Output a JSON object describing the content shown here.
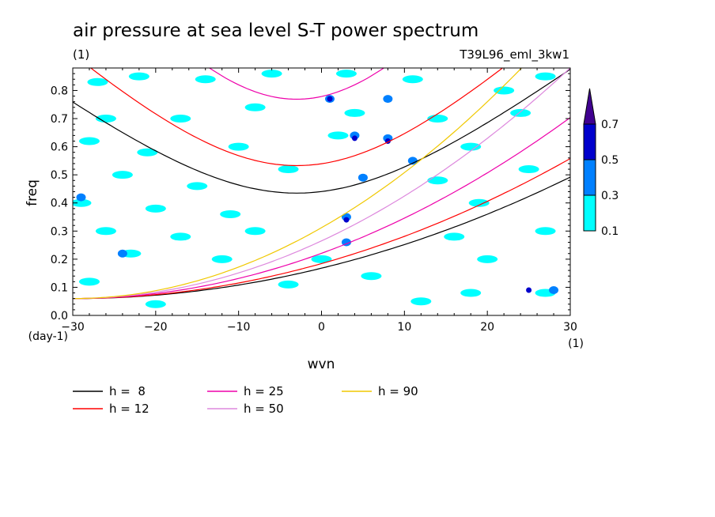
{
  "chart_data": {
    "type": "heatmap",
    "title": "air pressure at sea level S-T power spectrum",
    "subtitle_left": "(1)",
    "subtitle_right": "T39L96_eml_3kw1",
    "xlabel": "wvn",
    "ylabel": "freq",
    "x_unit_label": "(1)",
    "y_unit_label": "(day-1)",
    "xlim": [
      -30,
      30
    ],
    "ylim": [
      0.0,
      0.88
    ],
    "xticks": [
      -30,
      -20,
      -10,
      0,
      10,
      20,
      30
    ],
    "yticks": [
      0.0,
      0.1,
      0.2,
      0.3,
      0.4,
      0.5,
      0.6,
      0.7,
      0.8
    ],
    "colorbar": {
      "levels": [
        "0.1",
        "0.3",
        "0.5",
        "0.7"
      ],
      "colors": [
        "#00ffff",
        "#0080ff",
        "#0000cc",
        "#400090"
      ]
    },
    "contour_blobs": [
      {
        "x": -27,
        "y": 0.83,
        "level": 1
      },
      {
        "x": -22,
        "y": 0.85,
        "level": 1
      },
      {
        "x": -14,
        "y": 0.84,
        "level": 1
      },
      {
        "x": -6,
        "y": 0.86,
        "level": 1
      },
      {
        "x": 3,
        "y": 0.86,
        "level": 1
      },
      {
        "x": 11,
        "y": 0.84,
        "level": 1
      },
      {
        "x": 22,
        "y": 0.8,
        "level": 1
      },
      {
        "x": 27,
        "y": 0.85,
        "level": 1
      },
      {
        "x": -26,
        "y": 0.7,
        "level": 1
      },
      {
        "x": -17,
        "y": 0.7,
        "level": 1
      },
      {
        "x": -8,
        "y": 0.74,
        "level": 1
      },
      {
        "x": 4,
        "y": 0.72,
        "level": 1
      },
      {
        "x": 14,
        "y": 0.7,
        "level": 1
      },
      {
        "x": 24,
        "y": 0.72,
        "level": 1
      },
      {
        "x": -28,
        "y": 0.62,
        "level": 1
      },
      {
        "x": -21,
        "y": 0.58,
        "level": 1
      },
      {
        "x": -10,
        "y": 0.6,
        "level": 1
      },
      {
        "x": 2,
        "y": 0.64,
        "level": 1
      },
      {
        "x": 18,
        "y": 0.6,
        "level": 1
      },
      {
        "x": -24,
        "y": 0.5,
        "level": 1
      },
      {
        "x": -15,
        "y": 0.46,
        "level": 1
      },
      {
        "x": -4,
        "y": 0.52,
        "level": 1
      },
      {
        "x": 14,
        "y": 0.48,
        "level": 1
      },
      {
        "x": 25,
        "y": 0.52,
        "level": 1
      },
      {
        "x": -29,
        "y": 0.4,
        "level": 1
      },
      {
        "x": -20,
        "y": 0.38,
        "level": 1
      },
      {
        "x": -11,
        "y": 0.36,
        "level": 1
      },
      {
        "x": 19,
        "y": 0.4,
        "level": 1
      },
      {
        "x": -26,
        "y": 0.3,
        "level": 1
      },
      {
        "x": -17,
        "y": 0.28,
        "level": 1
      },
      {
        "x": -8,
        "y": 0.3,
        "level": 1
      },
      {
        "x": 16,
        "y": 0.28,
        "level": 1
      },
      {
        "x": 27,
        "y": 0.3,
        "level": 1
      },
      {
        "x": -23,
        "y": 0.22,
        "level": 1
      },
      {
        "x": -12,
        "y": 0.2,
        "level": 1
      },
      {
        "x": 0,
        "y": 0.2,
        "level": 1
      },
      {
        "x": 20,
        "y": 0.2,
        "level": 1
      },
      {
        "x": -28,
        "y": 0.12,
        "level": 1
      },
      {
        "x": -4,
        "y": 0.11,
        "level": 1
      },
      {
        "x": 6,
        "y": 0.14,
        "level": 1
      },
      {
        "x": 18,
        "y": 0.08,
        "level": 1
      },
      {
        "x": 27,
        "y": 0.08,
        "level": 1
      },
      {
        "x": -20,
        "y": 0.04,
        "level": 1
      },
      {
        "x": 12,
        "y": 0.05,
        "level": 1
      },
      {
        "x": 1,
        "y": 0.77,
        "level": 2
      },
      {
        "x": 4,
        "y": 0.64,
        "level": 2
      },
      {
        "x": 8,
        "y": 0.63,
        "level": 2
      },
      {
        "x": 5,
        "y": 0.49,
        "level": 2
      },
      {
        "x": 3,
        "y": 0.35,
        "level": 2
      },
      {
        "x": 28,
        "y": 0.09,
        "level": 2
      },
      {
        "x": -29,
        "y": 0.42,
        "level": 2
      },
      {
        "x": -24,
        "y": 0.22,
        "level": 2
      },
      {
        "x": 11,
        "y": 0.55,
        "level": 2
      },
      {
        "x": 8,
        "y": 0.77,
        "level": 2
      },
      {
        "x": 3,
        "y": 0.26,
        "level": 2
      },
      {
        "x": 1,
        "y": 0.77,
        "level": 3
      },
      {
        "x": 8,
        "y": 0.62,
        "level": 3
      },
      {
        "x": 3,
        "y": 0.34,
        "level": 3
      },
      {
        "x": 4,
        "y": 0.63,
        "level": 3
      },
      {
        "x": 25,
        "y": 0.09,
        "level": 3
      }
    ],
    "series": [
      {
        "name": "h =  8",
        "color": "#000000",
        "h": 8
      },
      {
        "name": "h = 12",
        "color": "#ff0000",
        "h": 12
      },
      {
        "name": "h = 25",
        "color": "#ee00aa",
        "h": 25
      },
      {
        "name": "h = 50",
        "color": "#dd88dd",
        "h": 50
      },
      {
        "name": "h = 90",
        "color": "#f0c800",
        "h": 90
      }
    ]
  }
}
